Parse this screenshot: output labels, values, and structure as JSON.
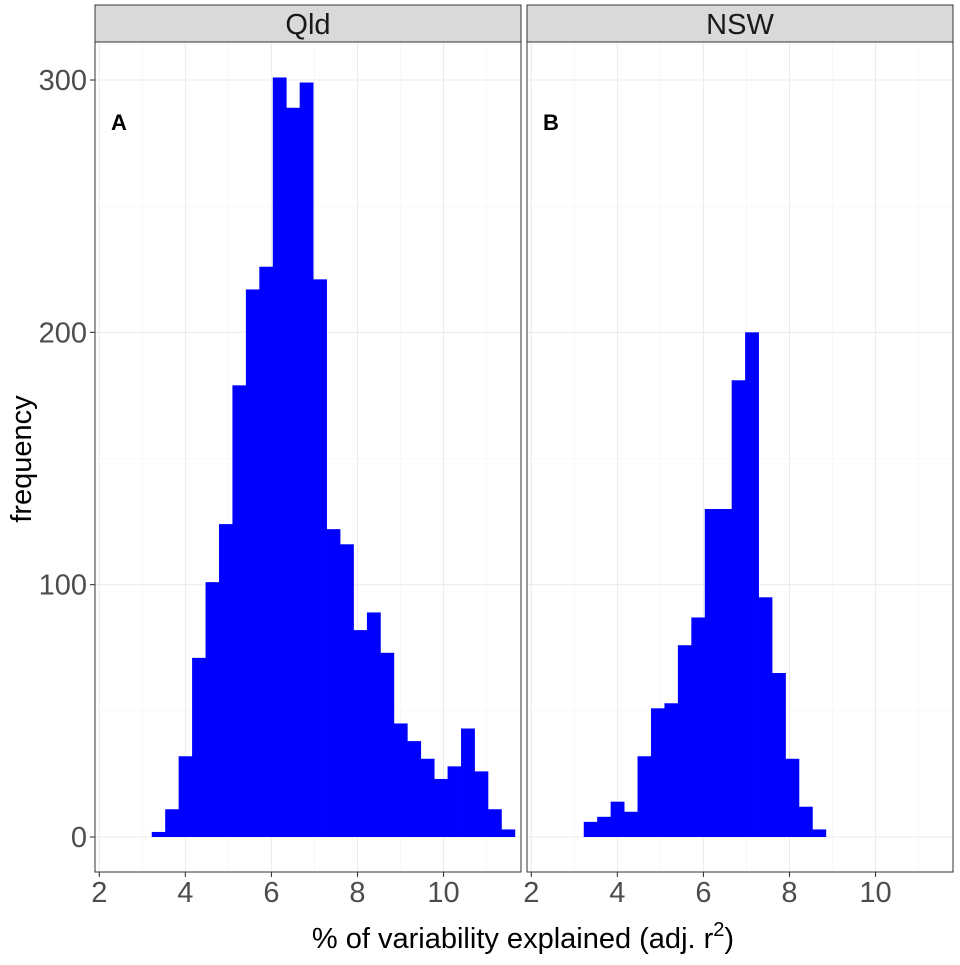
{
  "chart_data": {
    "type": "bar",
    "subtype": "histogram",
    "xlabel": "% of variability explained (adj. r",
    "xlabel_superscript": "2",
    "xlabel_close": ")",
    "ylabel": "frequency",
    "x_ticks": [
      "2",
      "4",
      "6",
      "8",
      "10"
    ],
    "y_ticks": [
      "0",
      "100",
      "200",
      "300"
    ],
    "xlim": [
      1.9,
      11.8
    ],
    "ylim": [
      -14,
      316
    ],
    "bin_width": 0.3125,
    "bar_color": "#0000ff",
    "grid": true,
    "panels": [
      {
        "strip_label": "Qld",
        "tag": "A",
        "bin_start": 3.21875,
        "values": [
          2,
          11,
          32,
          71,
          101,
          124,
          179,
          217,
          226,
          301,
          289,
          299,
          221,
          122,
          116,
          82,
          89,
          73,
          45,
          38,
          31,
          23,
          28,
          43,
          26,
          11,
          3
        ]
      },
      {
        "strip_label": "NSW",
        "tag": "B",
        "bin_start": 3.21875,
        "values": [
          6,
          8,
          14,
          10,
          32,
          51,
          53,
          76,
          87,
          130,
          130,
          181,
          200,
          95,
          65,
          31,
          12,
          3
        ]
      }
    ]
  }
}
